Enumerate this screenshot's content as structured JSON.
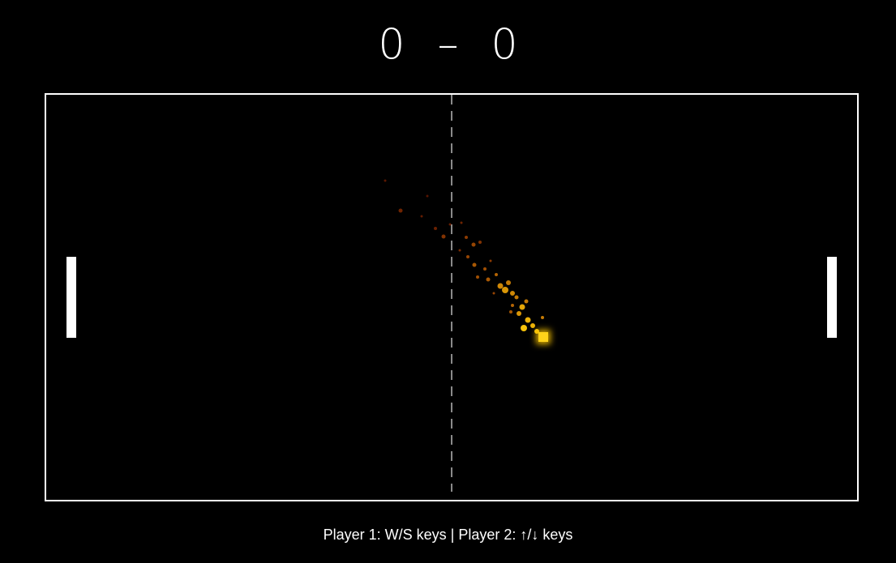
{
  "score": {
    "player1": "0",
    "separator": "–",
    "player2": "0"
  },
  "controls_hint": "Player 1: W/S keys | Player 2: ↑/↓ keys",
  "colors": {
    "background": "#000000",
    "foreground": "#ffffff",
    "center_line": "#8a8a8a",
    "ball": "#ffd21a",
    "trail_hot": "#ffb300",
    "trail_cool": "#8a1e00"
  },
  "icons": {
    "paddle": "rectangle",
    "ball": "square"
  }
}
